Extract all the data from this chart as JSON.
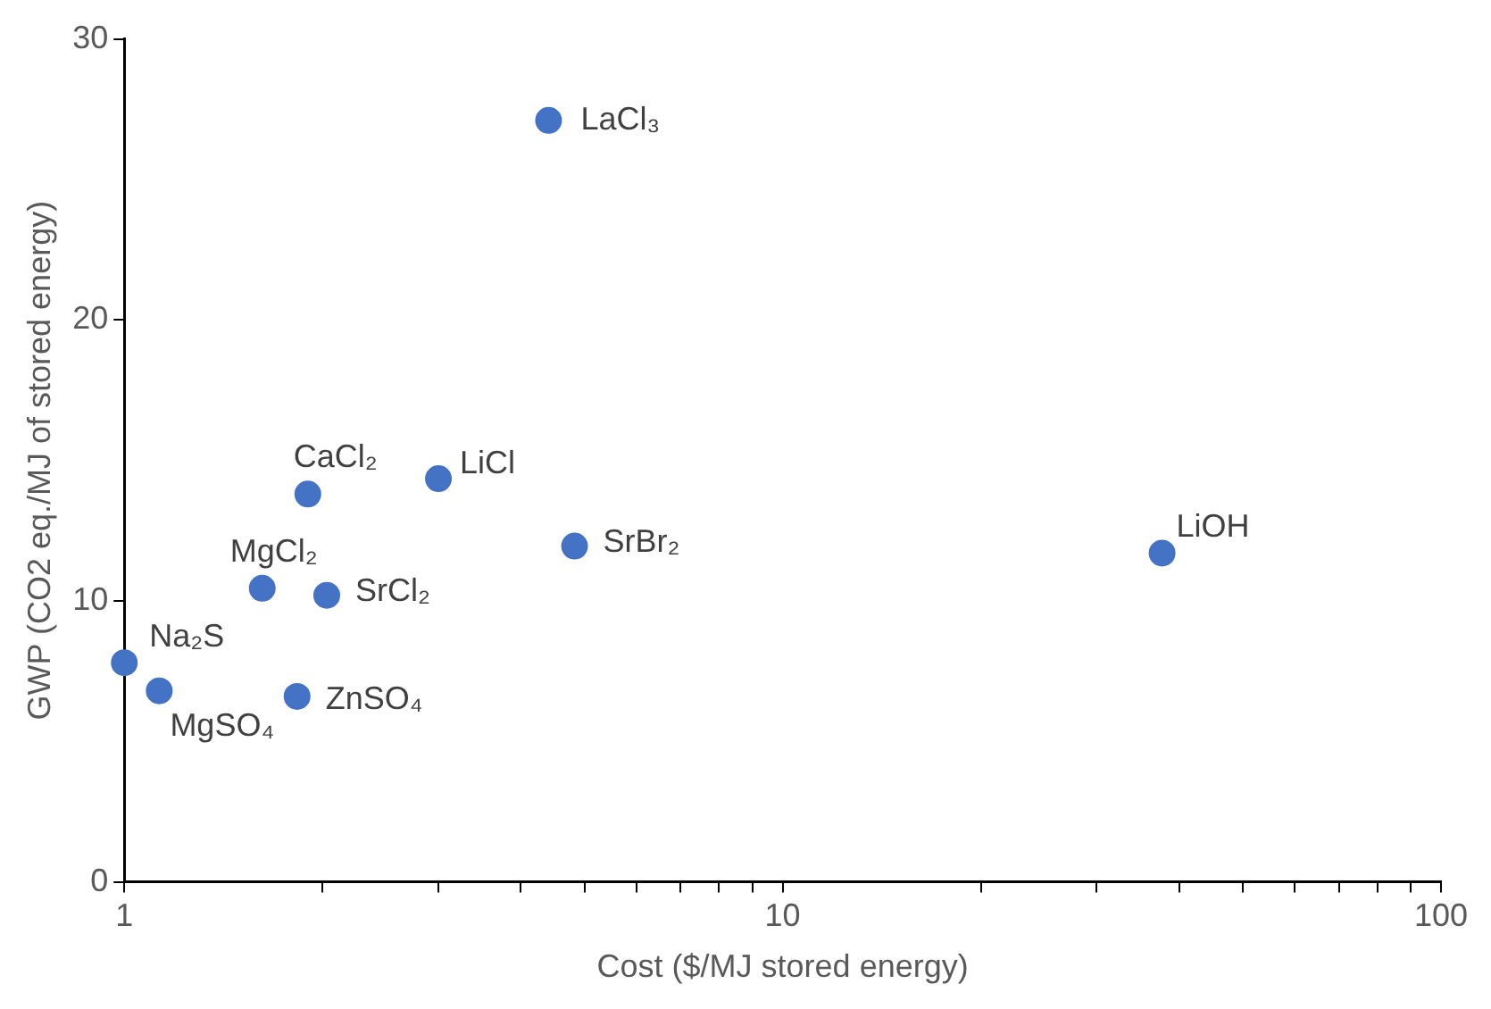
{
  "chart_data": {
    "type": "scatter",
    "xlabel": "Cost ($/MJ stored energy)",
    "ylabel": "GWP (CO2 eq./MJ of stored energy)",
    "x": [
      4.41,
      1.9,
      3.0,
      4.83,
      37.7,
      1.62,
      2.03,
      1.0,
      1.13,
      1.83
    ],
    "series": [
      {
        "color": "#4472c4",
        "values": [
          27.1,
          13.8,
          14.35,
          11.95,
          11.7,
          10.45,
          10.2,
          7.8,
          6.8,
          6.6
        ]
      }
    ],
    "log": "x",
    "xlim": [
      1,
      100
    ],
    "xticks": [
      1,
      {
        "value": 2,
        "label": null
      },
      {
        "value": 3,
        "label": null
      },
      {
        "value": 4,
        "label": null
      },
      {
        "value": 5,
        "label": null
      },
      {
        "value": 6,
        "label": null
      },
      {
        "value": 7,
        "label": null
      },
      {
        "value": 8,
        "label": null
      },
      {
        "value": 9,
        "label": null
      },
      10,
      {
        "value": 20,
        "label": null
      },
      {
        "value": 30,
        "label": null
      },
      {
        "value": 40,
        "label": null
      },
      {
        "value": 50,
        "label": null
      },
      {
        "value": 60,
        "label": null
      },
      {
        "value": 70,
        "label": null
      },
      {
        "value": 80,
        "label": null
      },
      {
        "value": 90,
        "label": null
      },
      100
    ],
    "ylim": [
      0,
      30
    ],
    "yticks": [
      0,
      10,
      20,
      30
    ],
    "grid": false,
    "legend": false,
    "marker": "circle",
    "annotations": [
      {
        "text": "LaCl₃",
        "x": 4.41,
        "y": 27.1
      },
      {
        "text": "CaCl₂",
        "x": 1.9,
        "y": 13.8
      },
      {
        "text": "LiCl",
        "x": 3.0,
        "y": 14.35
      },
      {
        "text": "SrBr₂",
        "x": 4.83,
        "y": 11.95
      },
      {
        "text": "LiOH",
        "x": 37.7,
        "y": 11.7
      },
      {
        "text": "MgCl₂",
        "x": 1.62,
        "y": 10.45
      },
      {
        "text": "SrCl₂",
        "x": 2.03,
        "y": 10.2
      },
      {
        "text": "Na₂S",
        "x": 1.0,
        "y": 7.8
      },
      {
        "text": "MgSO₄",
        "x": 1.13,
        "y": 6.8
      },
      {
        "text": "ZnSO₄",
        "x": 1.83,
        "y": 6.6
      }
    ]
  }
}
